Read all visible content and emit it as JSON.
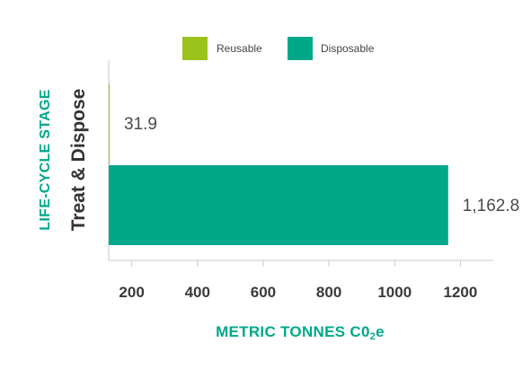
{
  "chart_data": {
    "type": "bar",
    "orientation": "horizontal",
    "categories": [
      "Treat & Dispose"
    ],
    "series": [
      {
        "name": "Reusable",
        "values": [
          31.9
        ],
        "value_labels": [
          "31.9"
        ],
        "color": "#9bc31c"
      },
      {
        "name": "Disposable",
        "values": [
          1162.8
        ],
        "value_labels": [
          "1,162.8"
        ],
        "color": "#00a88a"
      }
    ],
    "xlabel_main": "METRIC TONNES C0",
    "xlabel_sub": "2",
    "xlabel_tail": "e",
    "ylabel": "LIFE-CYCLE STAGE",
    "xticks": [
      200,
      400,
      600,
      800,
      1000,
      1200
    ],
    "xlim": [
      130,
      1300
    ],
    "legend_position": "top",
    "grid": false
  },
  "colors": {
    "accent": "#00a88a",
    "reusable": "#9bc31c",
    "disposable": "#00a88a"
  }
}
